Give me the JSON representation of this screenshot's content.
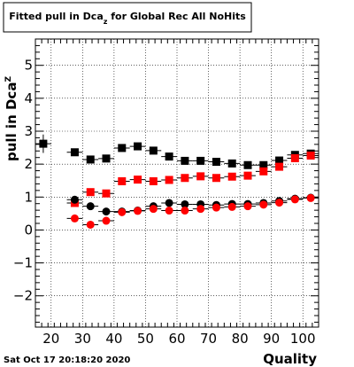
{
  "chart_data": {
    "type": "scatter",
    "title": {
      "main": "Fitted pull in Dca",
      "subscript": "z",
      "rest": "  for Global Rec All NoHits"
    },
    "xlabel": "Quality",
    "ylabel": {
      "main": "pull in Dca",
      "subscript": "Z"
    },
    "date": "Sat Oct 17 20:18:20 2020",
    "xlim": [
      15,
      105
    ],
    "ylim": [
      -2.95,
      5.8
    ],
    "xticks": [
      20,
      30,
      40,
      50,
      60,
      70,
      80,
      90,
      100
    ],
    "xtick_labels": [
      "20",
      "30",
      "40",
      "50",
      "60",
      "70",
      "80",
      "90",
      "100"
    ],
    "yticks": [
      -2,
      -1,
      0,
      1,
      2,
      3,
      4,
      5
    ],
    "ytick_labels": [
      "−2",
      "−1",
      "0",
      "1",
      "2",
      "3",
      "4",
      "5"
    ],
    "grid": true,
    "series": [
      {
        "marker": "square",
        "color": "#000000",
        "x": [
          17.5,
          27.5,
          32.5,
          37.5,
          42.5,
          47.5,
          52.5,
          57.5,
          62.5,
          67.5,
          72.5,
          77.5,
          82.5,
          87.5,
          92.5,
          97.5,
          102.5
        ],
        "y": [
          2.62,
          2.36,
          2.14,
          2.17,
          2.49,
          2.54,
          2.41,
          2.23,
          2.1,
          2.1,
          2.07,
          2.02,
          1.97,
          1.97,
          2.11,
          2.28,
          2.32
        ],
        "err": [
          0.28,
          0.06,
          0.05,
          0.05,
          0.05,
          0.05,
          0.05,
          0.05,
          0.05,
          0.05,
          0.05,
          0.05,
          0.05,
          0.05,
          0.05,
          0.05,
          0.05
        ]
      },
      {
        "marker": "square",
        "color": "#ff0000",
        "x": [
          27.5,
          32.5,
          37.5,
          42.5,
          47.5,
          52.5,
          57.5,
          62.5,
          67.5,
          72.5,
          77.5,
          82.5,
          87.5,
          92.5,
          97.5,
          102.5
        ],
        "y": [
          0.82,
          1.15,
          1.11,
          1.48,
          1.53,
          1.48,
          1.52,
          1.58,
          1.63,
          1.58,
          1.62,
          1.65,
          1.78,
          1.92,
          2.18,
          2.26
        ],
        "err": [
          0.05,
          0.05,
          0.05,
          0.05,
          0.05,
          0.05,
          0.05,
          0.05,
          0.05,
          0.05,
          0.05,
          0.05,
          0.05,
          0.05,
          0.05,
          0.05
        ]
      },
      {
        "marker": "circle",
        "color": "#000000",
        "x": [
          27.5,
          32.5,
          37.5,
          42.5,
          47.5,
          52.5,
          57.5,
          62.5,
          67.5,
          72.5,
          77.5,
          82.5,
          87.5,
          92.5,
          97.5,
          102.5
        ],
        "y": [
          0.92,
          0.72,
          0.56,
          0.56,
          0.59,
          0.72,
          0.82,
          0.78,
          0.78,
          0.76,
          0.79,
          0.79,
          0.82,
          0.88,
          0.95,
          0.98
        ],
        "err": [
          0.04,
          0.04,
          0.04,
          0.04,
          0.04,
          0.04,
          0.04,
          0.04,
          0.04,
          0.04,
          0.04,
          0.04,
          0.04,
          0.04,
          0.04,
          0.04
        ]
      },
      {
        "marker": "circle",
        "color": "#ff0000",
        "x": [
          27.5,
          32.5,
          37.5,
          42.5,
          47.5,
          52.5,
          57.5,
          62.5,
          67.5,
          72.5,
          77.5,
          82.5,
          87.5,
          92.5,
          97.5,
          102.5
        ],
        "y": [
          0.35,
          0.16,
          0.28,
          0.54,
          0.58,
          0.64,
          0.59,
          0.59,
          0.64,
          0.68,
          0.7,
          0.72,
          0.77,
          0.83,
          0.93,
          0.97
        ],
        "err": [
          0.04,
          0.04,
          0.04,
          0.04,
          0.04,
          0.04,
          0.04,
          0.04,
          0.04,
          0.04,
          0.04,
          0.04,
          0.04,
          0.04,
          0.04,
          0.04
        ]
      }
    ]
  }
}
